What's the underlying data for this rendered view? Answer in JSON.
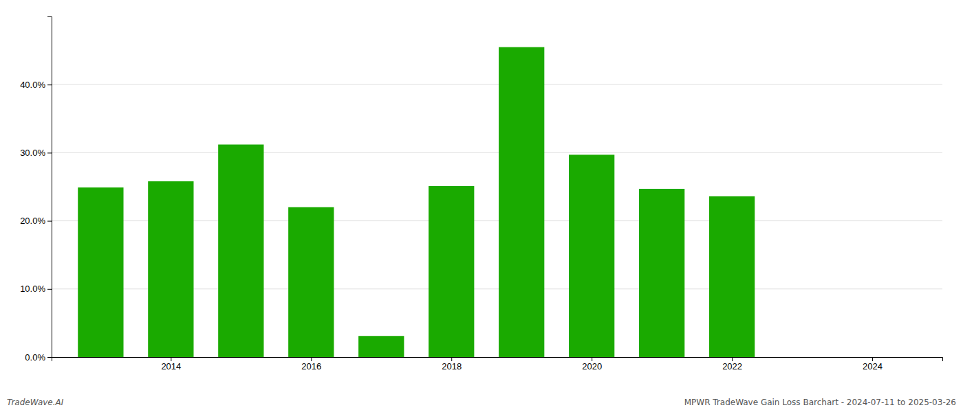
{
  "chart_data": {
    "type": "bar",
    "x": [
      2013,
      2014,
      2015,
      2016,
      2017,
      2018,
      2019,
      2020,
      2021,
      2022
    ],
    "values": [
      0.249,
      0.258,
      0.312,
      0.22,
      0.031,
      0.251,
      0.455,
      0.297,
      0.247,
      0.236
    ],
    "color": "#1aaa00",
    "xlim": [
      2012.3,
      2025.0
    ],
    "xticks": [
      2014,
      2016,
      2018,
      2020,
      2022,
      2024
    ],
    "ylim": [
      0,
      0.5
    ],
    "yticks": [
      {
        "value": 0.0,
        "label": "0.0%"
      },
      {
        "value": 0.1,
        "label": "10.0%"
      },
      {
        "value": 0.2,
        "label": "20.0%"
      },
      {
        "value": 0.3,
        "label": "30.0%"
      },
      {
        "value": 0.4,
        "label": "40.0%"
      }
    ],
    "grid": true,
    "annotations": [
      "TradeWave.AI",
      "MPWR TradeWave Gain Loss Barchart - 2024-07-11 to 2025-03-26"
    ]
  }
}
